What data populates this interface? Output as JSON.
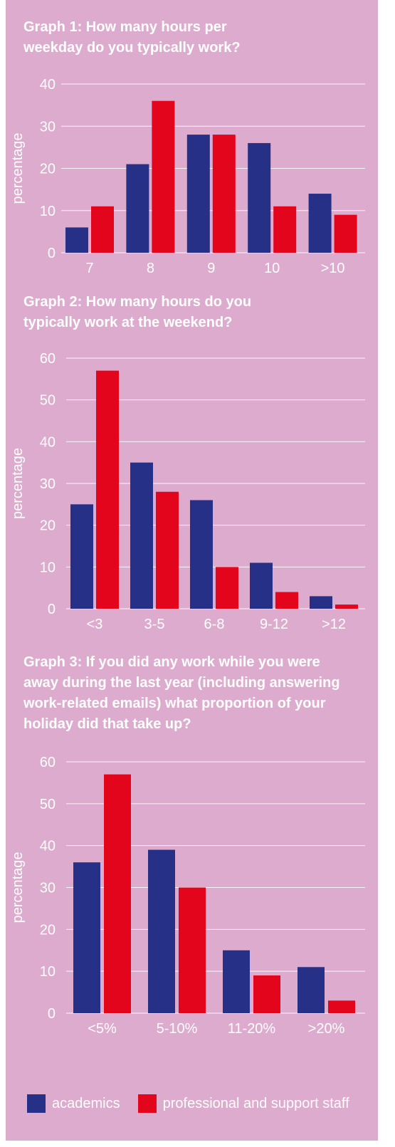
{
  "colors": {
    "background": "#ddabce",
    "academics": "#263086",
    "staff": "#e3051b",
    "text": "#ffffff"
  },
  "legend": {
    "academics": "academics",
    "staff": "professional and support staff"
  },
  "chart_data": [
    {
      "type": "bar",
      "title": "Graph 1: How many hours per\nweekday do you typically work?",
      "ylabel": "percentage",
      "xlabel": "",
      "categories": [
        "7",
        "8",
        "9",
        "10",
        ">10"
      ],
      "ylim": [
        0,
        40
      ],
      "yticks": [
        0,
        10,
        20,
        30,
        40
      ],
      "grid": true,
      "series": [
        {
          "name": "academics",
          "values": [
            6,
            21,
            28,
            26,
            14
          ]
        },
        {
          "name": "professional and support staff",
          "values": [
            11,
            36,
            28,
            11,
            9
          ]
        }
      ]
    },
    {
      "type": "bar",
      "title": "Graph 2: How many hours do you\ntypically work at the weekend?",
      "ylabel": "percentage",
      "xlabel": "",
      "categories": [
        "<3",
        "3-5",
        "6-8",
        "9-12",
        ">12"
      ],
      "ylim": [
        0,
        60
      ],
      "yticks": [
        0,
        10,
        20,
        30,
        40,
        50,
        60
      ],
      "grid": true,
      "series": [
        {
          "name": "academics",
          "values": [
            25,
            35,
            26,
            11,
            3
          ]
        },
        {
          "name": "professional and support staff",
          "values": [
            57,
            28,
            10,
            4,
            1
          ]
        }
      ]
    },
    {
      "type": "bar",
      "title": "Graph 3: If you did any work while you were\naway during the last year (including answering\nwork-related emails) what proportion of your\nholiday did that take up?",
      "ylabel": "percentage",
      "xlabel": "",
      "categories": [
        "<5%",
        "5-10%",
        "11-20%",
        ">20%"
      ],
      "ylim": [
        0,
        60
      ],
      "yticks": [
        0,
        10,
        20,
        30,
        40,
        50,
        60
      ],
      "grid": true,
      "series": [
        {
          "name": "academics",
          "values": [
            36,
            39,
            15,
            11
          ]
        },
        {
          "name": "professional and support staff",
          "values": [
            57,
            30,
            9,
            3
          ]
        }
      ]
    }
  ]
}
